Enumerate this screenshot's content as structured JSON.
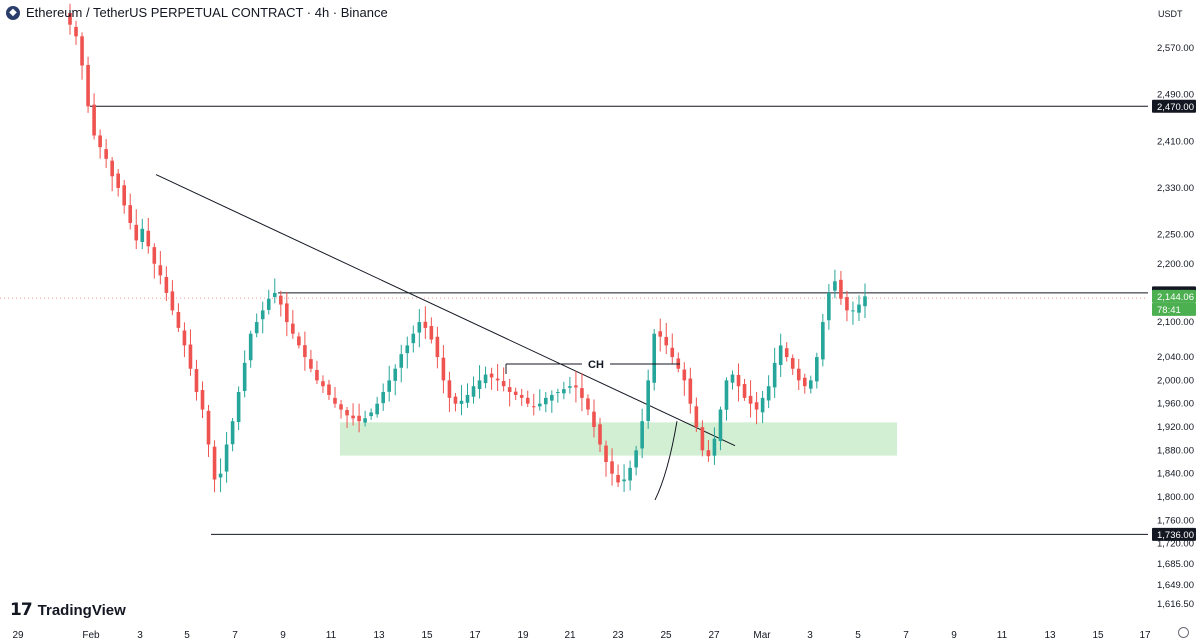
{
  "header": {
    "title": "Ethereum / TetherUS PERPETUAL CONTRACT · 4h · Binance",
    "icon": "ethereum-icon",
    "currency": "USDT"
  },
  "branding": {
    "logo_text": "TradingView",
    "logo_mark": "17"
  },
  "colors": {
    "up": "#26a69a",
    "down": "#ef5350",
    "zone": "#c8ebc8",
    "line": "#131722"
  },
  "chart_data": {
    "type": "candlestick",
    "timeframe": "4h",
    "y_axis_ticks": [
      2570,
      2490,
      2410,
      2330,
      2250,
      2200,
      2100,
      2040,
      2000,
      1960,
      1920,
      1880,
      1840,
      1800,
      1760,
      1720,
      1685,
      1649,
      1616.5
    ],
    "y_axis_tick_labels": [
      "2,570.00",
      "2,490.00",
      "2,410.00",
      "2,330.00",
      "2,250.00",
      "2,200.00",
      "2,100.00",
      "2,040.00",
      "2,000.00",
      "1,960.00",
      "1,920.00",
      "1,880.00",
      "1,840.00",
      "1,800.00",
      "1,760.00",
      "1,720.00",
      "1,685.00",
      "1,649.00",
      "1,616.50"
    ],
    "x_axis_labels": [
      "29",
      "Feb",
      "3",
      "5",
      "7",
      "9",
      "11",
      "13",
      "15",
      "17",
      "19",
      "21",
      "23",
      "25",
      "27",
      "Mar",
      "3",
      "5",
      "7",
      "9",
      "11",
      "13",
      "15",
      "17"
    ],
    "price_labels": [
      {
        "text": "2,470.00",
        "value": 2470,
        "style": "dark"
      },
      {
        "text": "2,150.00",
        "value": 2150,
        "style": "dark"
      },
      {
        "text": "2,144.06",
        "value": 2144.06,
        "style": "green"
      },
      {
        "text": "78:41",
        "value": null,
        "style": "green-sub"
      },
      {
        "text": "1,736.00",
        "value": 1736,
        "style": "dark"
      }
    ],
    "horizontal_levels": [
      {
        "value": 2470,
        "from_date": "Jan 31"
      },
      {
        "value": 2150,
        "from_date": "Feb 8"
      },
      {
        "value": 1736,
        "from_date": "Feb 6"
      }
    ],
    "demand_zone": {
      "low": 1871,
      "high": 1928,
      "from_date": "Feb 11",
      "to_date": "Mar 6"
    },
    "trendline": {
      "from": {
        "date": "Feb 3",
        "price": 2353
      },
      "to": {
        "date": "Feb 26",
        "price": 1888
      }
    },
    "annotation": {
      "text": "CH",
      "price": 2028
    },
    "current_price": 2144.06,
    "candles_close": [
      2610,
      2590,
      2540,
      2470,
      2420,
      2400,
      2380,
      2350,
      2330,
      2300,
      2270,
      2240,
      2260,
      2230,
      2200,
      2180,
      2150,
      2120,
      2090,
      2060,
      2020,
      1980,
      1950,
      1890,
      1830,
      1840,
      1890,
      1930,
      1980,
      2030,
      2080,
      2100,
      2120,
      2140,
      2150,
      2130,
      2100,
      2080,
      2060,
      2040,
      2020,
      2000,
      1990,
      1975,
      1960,
      1950,
      1940,
      1935,
      1930,
      1935,
      1945,
      1960,
      1980,
      2000,
      2020,
      2045,
      2060,
      2080,
      2100,
      2090,
      2070,
      2040,
      2000,
      1970,
      1960,
      1965,
      1975,
      1990,
      2000,
      2010,
      2005,
      2000,
      1990,
      1980,
      1975,
      1970,
      1960,
      1955,
      1960,
      1970,
      1975,
      1980,
      1985,
      1990,
      1988,
      1970,
      1950,
      1920,
      1890,
      1860,
      1840,
      1825,
      1830,
      1850,
      1880,
      1930,
      2000,
      2080,
      2075,
      2060,
      2040,
      2020,
      2000,
      1960,
      1920,
      1880,
      1870,
      1900,
      1950,
      2000,
      2010,
      1990,
      1970,
      1960,
      1950,
      1970,
      1990,
      2030,
      2060,
      2040,
      2020,
      2000,
      1990,
      2000,
      2040,
      2100,
      2150,
      2170,
      2140,
      2120,
      2120,
      2130,
      2144.06
    ]
  }
}
